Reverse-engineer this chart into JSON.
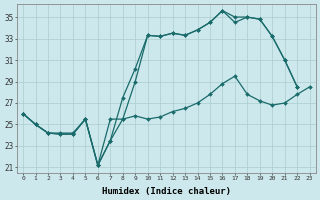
{
  "xlabel": "Humidex (Indice chaleur)",
  "bg_color": "#cce8ec",
  "grid_color": "#aacccc",
  "line_color": "#1a6b6b",
  "xlim": [
    -0.5,
    23.5
  ],
  "ylim": [
    20.5,
    36.2
  ],
  "xticks": [
    0,
    1,
    2,
    3,
    4,
    5,
    6,
    7,
    8,
    9,
    10,
    11,
    12,
    13,
    14,
    15,
    16,
    17,
    18,
    19,
    20,
    21,
    22,
    23
  ],
  "yticks": [
    21,
    23,
    25,
    27,
    29,
    31,
    33,
    35
  ],
  "line1_x": [
    0,
    1,
    2,
    3,
    4,
    5,
    6,
    7,
    8,
    9,
    10,
    11,
    12,
    13,
    14,
    15,
    16,
    17,
    18,
    19,
    20,
    21,
    22
  ],
  "line1_y": [
    26.0,
    25.0,
    24.2,
    24.1,
    24.1,
    25.5,
    21.2,
    23.5,
    27.5,
    30.2,
    33.3,
    33.2,
    33.5,
    33.3,
    33.8,
    34.5,
    35.6,
    35.0,
    35.0,
    34.8,
    33.2,
    31.0,
    28.5
  ],
  "line2_x": [
    0,
    1,
    2,
    3,
    4,
    5,
    6,
    7,
    8,
    9,
    10,
    11,
    12,
    13,
    14,
    15,
    16,
    17,
    18,
    19,
    20,
    21,
    22
  ],
  "line2_y": [
    26.0,
    25.0,
    24.2,
    24.1,
    24.1,
    25.5,
    21.2,
    23.5,
    25.5,
    29.0,
    33.3,
    33.2,
    33.5,
    33.3,
    33.8,
    34.5,
    35.6,
    34.5,
    35.0,
    34.8,
    33.2,
    31.0,
    28.5
  ],
  "line3_x": [
    0,
    1,
    2,
    3,
    4,
    5,
    6,
    7,
    8,
    9,
    10,
    11,
    12,
    13,
    14,
    15,
    16,
    17,
    18,
    19,
    20,
    21,
    22,
    23
  ],
  "line3_y": [
    26.0,
    25.0,
    24.2,
    24.2,
    24.2,
    25.5,
    21.2,
    25.5,
    25.5,
    25.8,
    25.5,
    25.7,
    26.2,
    26.5,
    27.0,
    27.8,
    28.8,
    29.5,
    27.8,
    27.2,
    26.8,
    27.0,
    27.8,
    28.5
  ]
}
